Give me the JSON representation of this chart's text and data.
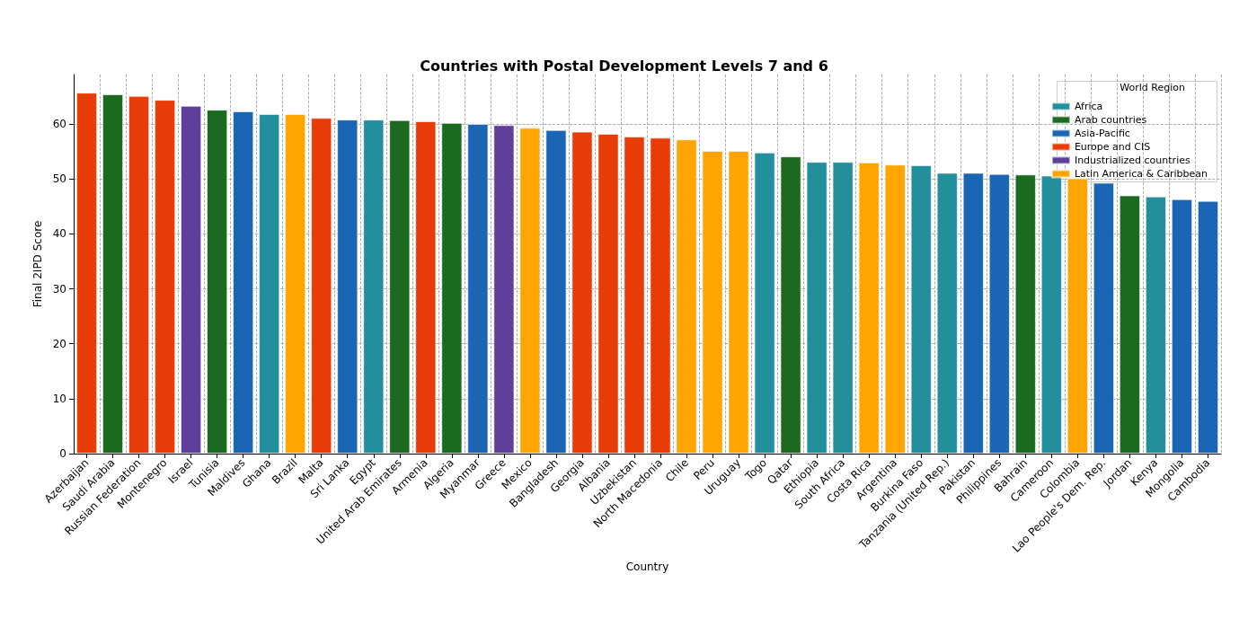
{
  "chart_data": {
    "type": "bar",
    "title": "Countries with Postal Development Levels 7 and 6",
    "xlabel": "Country",
    "ylabel": "Final 2IPD Score",
    "legend_title": "World Region",
    "legend": "top right",
    "grid": true,
    "categories": [
      "Azerbaijan",
      "Saudi Arabia",
      "Russian Federation",
      "Montenegro",
      "Israel",
      "Tunisia",
      "Maldives",
      "Ghana",
      "Brazil",
      "Malta",
      "Sri Lanka",
      "Egypt",
      "United Arab Emirates",
      "Armenia",
      "Algeria",
      "Myanmar",
      "Greece",
      "Mexico",
      "Bangladesh",
      "Georgia",
      "Albania",
      "Uzbekistan",
      "North Macedonia",
      "Chile",
      "Peru",
      "Uruguay",
      "Togo",
      "Qatar",
      "Ethiopia",
      "South Africa",
      "Costa Rica",
      "Argentina",
      "Burkina Faso",
      "Tanzania (United Rep.)",
      "Pakistan",
      "Philippines",
      "Bahrain",
      "Cameroon",
      "Colombia",
      "Lao People's Dem. Rep.",
      "Jordan",
      "Kenya",
      "Mongolia",
      "Cambodia"
    ],
    "series": [
      {
        "name": "Africa",
        "color": "#238f9d",
        "values": [
          null,
          null,
          null,
          null,
          null,
          null,
          null,
          61.8,
          null,
          null,
          null,
          60.8,
          null,
          null,
          null,
          null,
          null,
          null,
          null,
          null,
          null,
          null,
          null,
          null,
          null,
          null,
          54.8,
          null,
          53.1,
          53.1,
          null,
          null,
          52.5,
          51.1,
          null,
          null,
          null,
          50.6,
          null,
          null,
          null,
          46.8,
          null,
          null
        ]
      },
      {
        "name": "Arab countries",
        "color": "#1b6a1f",
        "values": [
          null,
          65.4,
          null,
          null,
          null,
          62.6,
          null,
          null,
          null,
          null,
          null,
          null,
          60.7,
          null,
          60.2,
          null,
          null,
          null,
          null,
          null,
          null,
          null,
          null,
          null,
          null,
          null,
          null,
          54.1,
          null,
          null,
          null,
          null,
          null,
          null,
          null,
          null,
          50.8,
          null,
          null,
          null,
          47.0,
          null,
          null,
          null
        ]
      },
      {
        "name": "Asia-Pacific",
        "color": "#1a66b5",
        "values": [
          null,
          null,
          null,
          null,
          null,
          null,
          62.3,
          null,
          null,
          null,
          60.8,
          null,
          null,
          null,
          null,
          60.0,
          null,
          null,
          58.9,
          null,
          null,
          null,
          null,
          null,
          null,
          null,
          null,
          null,
          null,
          null,
          null,
          null,
          null,
          null,
          51.1,
          50.9,
          null,
          null,
          null,
          49.3,
          null,
          null,
          46.3,
          46.0
        ]
      },
      {
        "name": "Europe and CIS",
        "color": "#e83c09",
        "values": [
          65.7,
          null,
          65.1,
          64.4,
          null,
          null,
          null,
          null,
          null,
          61.1,
          null,
          null,
          null,
          60.5,
          null,
          null,
          null,
          null,
          null,
          58.6,
          58.2,
          57.7,
          57.5,
          null,
          null,
          null,
          null,
          null,
          null,
          null,
          null,
          null,
          null,
          null,
          null,
          null,
          null,
          null,
          null,
          null,
          null,
          null,
          null,
          null
        ]
      },
      {
        "name": "Industrialized countries",
        "color": "#5e3f9a",
        "values": [
          null,
          null,
          null,
          null,
          63.3,
          null,
          null,
          null,
          null,
          null,
          null,
          null,
          null,
          null,
          null,
          null,
          59.8,
          null,
          null,
          null,
          null,
          null,
          null,
          null,
          null,
          null,
          null,
          null,
          null,
          null,
          null,
          null,
          null,
          null,
          null,
          null,
          null,
          null,
          null,
          null,
          null,
          null,
          null,
          null
        ]
      },
      {
        "name": "Latin America & Caribbean",
        "color": "#ffa500",
        "values": [
          null,
          null,
          null,
          null,
          null,
          null,
          null,
          null,
          61.8,
          null,
          null,
          null,
          null,
          null,
          null,
          null,
          null,
          59.3,
          null,
          null,
          null,
          null,
          null,
          57.2,
          55.1,
          55.1,
          null,
          null,
          null,
          null,
          53.0,
          52.6,
          null,
          null,
          null,
          null,
          null,
          null,
          50.1,
          null,
          null,
          null,
          null,
          null
        ]
      }
    ],
    "ylim": [
      0,
      69
    ],
    "yticks": [
      0,
      10,
      20,
      30,
      40,
      50,
      60
    ]
  }
}
